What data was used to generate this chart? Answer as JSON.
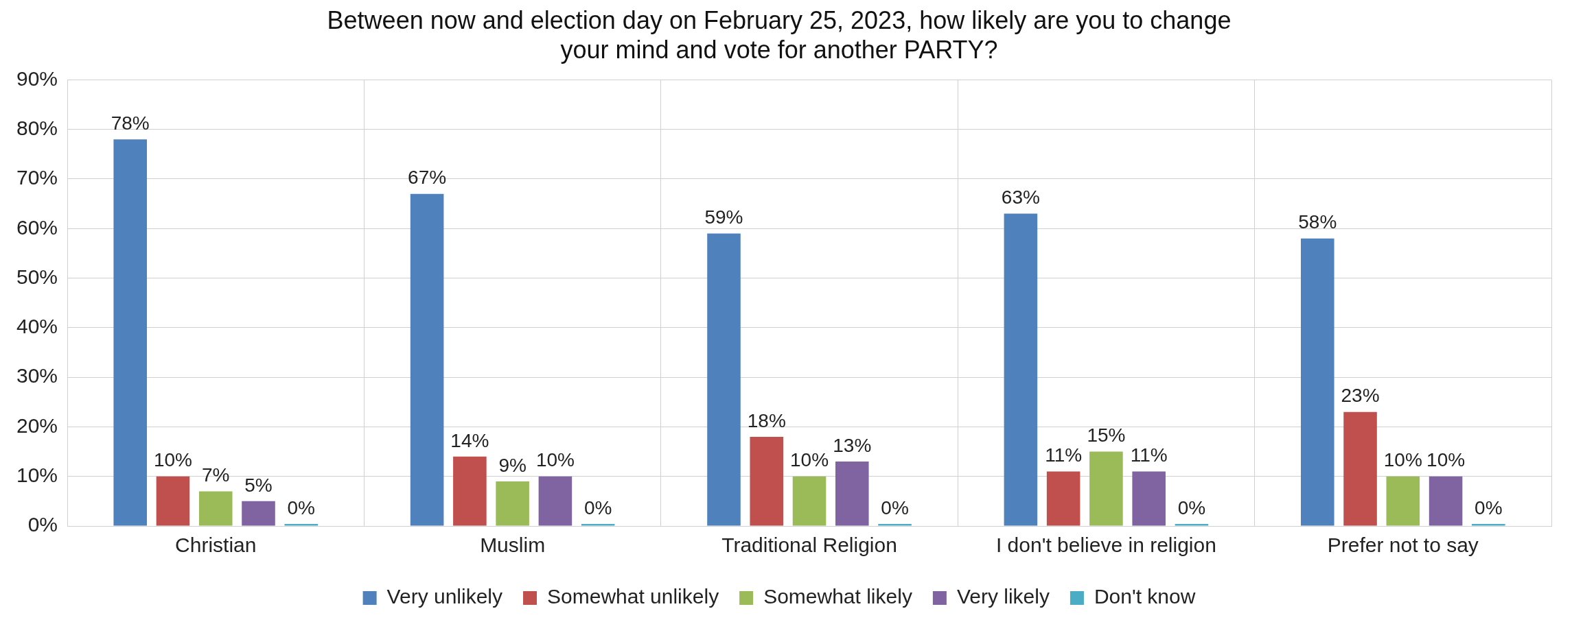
{
  "chart_data": {
    "type": "bar",
    "title": "Between now and election day on February 25, 2023, how likely are you to change\nyour mind and vote for another PARTY?",
    "categories": [
      "Christian",
      "Muslim",
      "Traditional Religion",
      "I don't believe in religion",
      "Prefer not to say"
    ],
    "series": [
      {
        "name": "Very unlikely",
        "color": "#4f81bd",
        "values": [
          78,
          67,
          59,
          63,
          58
        ],
        "value_labels": [
          "78%",
          "67%",
          "59%",
          "63%",
          "58%"
        ]
      },
      {
        "name": "Somewhat unlikely",
        "color": "#c0504d",
        "values": [
          10,
          14,
          18,
          11,
          23
        ],
        "value_labels": [
          "10%",
          "14%",
          "18%",
          "11%",
          "23%"
        ]
      },
      {
        "name": "Somewhat likely",
        "color": "#9bbb59",
        "values": [
          7,
          9,
          10,
          15,
          10
        ],
        "value_labels": [
          "7%",
          "9%",
          "10%",
          "15%",
          "10%"
        ]
      },
      {
        "name": "Very likely",
        "color": "#8064a2",
        "values": [
          5,
          10,
          13,
          11,
          10
        ],
        "value_labels": [
          "5%",
          "10%",
          "13%",
          "11%",
          "10%"
        ]
      },
      {
        "name": "Don't know",
        "color": "#4bacc6",
        "values": [
          0,
          0,
          0,
          0,
          0
        ],
        "value_labels": [
          "0%",
          "0%",
          "0%",
          "0%",
          "0%"
        ]
      }
    ],
    "ylim": [
      0,
      90
    ],
    "yticks": [
      {
        "value": 0,
        "label": "0%"
      },
      {
        "value": 10,
        "label": "10%"
      },
      {
        "value": 20,
        "label": "20%"
      },
      {
        "value": 30,
        "label": "30%"
      },
      {
        "value": 40,
        "label": "40%"
      },
      {
        "value": 50,
        "label": "50%"
      },
      {
        "value": 60,
        "label": "60%"
      },
      {
        "value": 70,
        "label": "70%"
      },
      {
        "value": 80,
        "label": "80%"
      },
      {
        "value": 90,
        "label": "90%"
      }
    ],
    "grid": true,
    "legend": "bottom"
  }
}
